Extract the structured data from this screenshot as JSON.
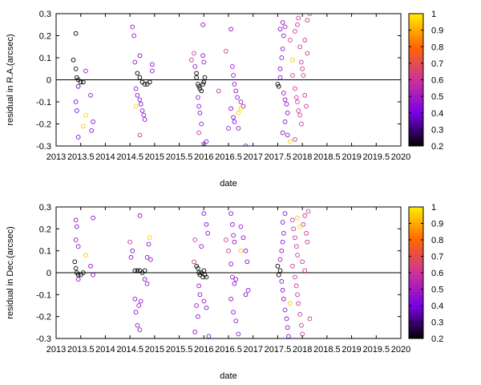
{
  "chart_data": [
    {
      "type": "scatter",
      "xlabel": "date",
      "ylabel": "residual in R.A.(arcsec)",
      "xlim": [
        2013,
        2020
      ],
      "ylim": [
        -0.3,
        0.3
      ],
      "xtick_labels": [
        "2013",
        "2013.5",
        "2014",
        "2014.5",
        "2015",
        "2015.5",
        "2016",
        "2016.5",
        "2017",
        "2017.5",
        "2018",
        "2018.5",
        "2019",
        "2019.5",
        "2020"
      ],
      "ytick_labels": [
        "0.3",
        "0.2",
        "0.1",
        "0",
        "-0.1",
        "-0.2",
        "-0.3"
      ],
      "colorbar": {
        "range": [
          0.2,
          1
        ],
        "tick_labels": [
          "1",
          "0.9",
          "0.8",
          "0.7",
          "0.6",
          "0.5",
          "0.4",
          "0.3",
          "0.2"
        ],
        "palette": [
          "#000000",
          "#7a00e6",
          "#cc3399",
          "#ff6600",
          "#ffee00"
        ]
      },
      "zero_line": true,
      "marker": "open-circle",
      "points": [
        [
          2013.4,
          0.21,
          0.2
        ],
        [
          2013.35,
          0.09,
          0.2
        ],
        [
          2013.4,
          0.05,
          0.25
        ],
        [
          2013.42,
          0.01,
          0.2
        ],
        [
          2013.45,
          0.0,
          0.2
        ],
        [
          2013.5,
          -0.01,
          0.2
        ],
        [
          2013.55,
          -0.01,
          0.2
        ],
        [
          2013.45,
          -0.03,
          0.35
        ],
        [
          2013.4,
          -0.1,
          0.4
        ],
        [
          2013.42,
          -0.14,
          0.4
        ],
        [
          2013.45,
          -0.26,
          0.4
        ],
        [
          2013.6,
          -0.16,
          0.95
        ],
        [
          2013.55,
          -0.21,
          0.95
        ],
        [
          2013.7,
          -0.07,
          0.45
        ],
        [
          2013.75,
          -0.19,
          0.45
        ],
        [
          2013.72,
          -0.23,
          0.45
        ],
        [
          2013.6,
          0.04,
          0.45
        ],
        [
          2014.55,
          0.24,
          0.45
        ],
        [
          2014.58,
          0.2,
          0.45
        ],
        [
          2014.7,
          0.11,
          0.45
        ],
        [
          2014.6,
          0.08,
          0.45
        ],
        [
          2014.65,
          0.03,
          0.2
        ],
        [
          2014.7,
          0.01,
          0.2
        ],
        [
          2014.75,
          -0.01,
          0.2
        ],
        [
          2014.8,
          -0.02,
          0.2
        ],
        [
          2014.85,
          -0.02,
          0.2
        ],
        [
          2014.9,
          -0.01,
          0.2
        ],
        [
          2014.62,
          -0.04,
          0.45
        ],
        [
          2014.65,
          -0.07,
          0.45
        ],
        [
          2014.7,
          -0.09,
          0.45
        ],
        [
          2014.72,
          -0.11,
          0.45
        ],
        [
          2014.75,
          -0.14,
          0.45
        ],
        [
          2014.78,
          -0.16,
          0.45
        ],
        [
          2014.8,
          -0.18,
          0.45
        ],
        [
          2014.62,
          -0.12,
          0.95
        ],
        [
          2014.7,
          -0.25,
          0.6
        ],
        [
          2014.95,
          0.07,
          0.45
        ],
        [
          2014.95,
          0.04,
          0.45
        ],
        [
          2015.75,
          0.09,
          0.6
        ],
        [
          2015.8,
          0.12,
          0.6
        ],
        [
          2015.82,
          0.06,
          0.45
        ],
        [
          2015.85,
          0.03,
          0.2
        ],
        [
          2015.85,
          0.01,
          0.2
        ],
        [
          2015.88,
          -0.02,
          0.2
        ],
        [
          2015.9,
          -0.03,
          0.2
        ],
        [
          2015.92,
          -0.04,
          0.2
        ],
        [
          2015.95,
          -0.05,
          0.2
        ],
        [
          2015.98,
          -0.02,
          0.2
        ],
        [
          2016.0,
          -0.01,
          0.2
        ],
        [
          2016.02,
          0.01,
          0.2
        ],
        [
          2015.88,
          -0.08,
          0.45
        ],
        [
          2015.9,
          -0.12,
          0.45
        ],
        [
          2015.92,
          -0.15,
          0.45
        ],
        [
          2015.95,
          -0.2,
          0.45
        ],
        [
          2015.9,
          -0.24,
          0.6
        ],
        [
          2015.98,
          0.11,
          0.45
        ],
        [
          2016.0,
          0.08,
          0.45
        ],
        [
          2015.98,
          0.25,
          0.45
        ],
        [
          2016.0,
          -0.29,
          0.45
        ],
        [
          2016.05,
          -0.28,
          0.45
        ],
        [
          2016.3,
          -0.05,
          0.6
        ],
        [
          2016.45,
          0.13,
          0.6
        ],
        [
          2016.55,
          0.23,
          0.45
        ],
        [
          2016.58,
          0.06,
          0.45
        ],
        [
          2016.6,
          0.02,
          0.45
        ],
        [
          2016.62,
          -0.02,
          0.45
        ],
        [
          2016.65,
          -0.05,
          0.45
        ],
        [
          2016.68,
          -0.08,
          0.45
        ],
        [
          2016.55,
          -0.13,
          0.45
        ],
        [
          2016.6,
          -0.17,
          0.45
        ],
        [
          2016.62,
          -0.19,
          0.45
        ],
        [
          2016.7,
          -0.22,
          0.45
        ],
        [
          2016.5,
          -0.22,
          0.45
        ],
        [
          2016.75,
          -0.1,
          0.45
        ],
        [
          2016.8,
          -0.12,
          0.45
        ],
        [
          2016.85,
          -0.3,
          0.45
        ],
        [
          2016.7,
          -0.15,
          0.95
        ],
        [
          2016.75,
          -0.13,
          0.95
        ],
        [
          2017.5,
          -0.02,
          0.2
        ],
        [
          2017.52,
          -0.03,
          0.2
        ],
        [
          2017.55,
          0.01,
          0.45
        ],
        [
          2017.55,
          0.05,
          0.45
        ],
        [
          2017.58,
          0.1,
          0.45
        ],
        [
          2017.6,
          0.14,
          0.45
        ],
        [
          2017.62,
          0.2,
          0.45
        ],
        [
          2017.65,
          0.24,
          0.45
        ],
        [
          2017.6,
          0.26,
          0.45
        ],
        [
          2017.55,
          0.23,
          0.45
        ],
        [
          2017.62,
          -0.06,
          0.45
        ],
        [
          2017.65,
          -0.09,
          0.45
        ],
        [
          2017.68,
          -0.11,
          0.45
        ],
        [
          2017.7,
          -0.15,
          0.45
        ],
        [
          2017.65,
          -0.19,
          0.45
        ],
        [
          2017.6,
          -0.24,
          0.45
        ],
        [
          2017.7,
          -0.25,
          0.45
        ],
        [
          2017.75,
          -0.28,
          0.95
        ],
        [
          2017.8,
          0.09,
          0.95
        ],
        [
          2017.75,
          0.18,
          0.6
        ],
        [
          2017.85,
          0.22,
          0.6
        ],
        [
          2017.9,
          0.25,
          0.6
        ],
        [
          2017.92,
          0.28,
          0.6
        ],
        [
          2017.8,
          0.02,
          0.6
        ],
        [
          2017.85,
          -0.04,
          0.6
        ],
        [
          2017.88,
          -0.08,
          0.6
        ],
        [
          2017.9,
          -0.1,
          0.6
        ],
        [
          2017.92,
          -0.14,
          0.6
        ],
        [
          2017.95,
          -0.16,
          0.6
        ],
        [
          2017.98,
          -0.2,
          0.6
        ],
        [
          2017.85,
          -0.27,
          0.6
        ],
        [
          2018.0,
          0.05,
          0.6
        ],
        [
          2018.02,
          0.02,
          0.6
        ],
        [
          2018.05,
          -0.07,
          0.6
        ],
        [
          2018.08,
          -0.12,
          0.6
        ],
        [
          2018.1,
          0.12,
          0.6
        ],
        [
          2018.05,
          0.18,
          0.6
        ],
        [
          2018.1,
          0.27,
          0.6
        ],
        [
          2018.15,
          0.3,
          0.6
        ],
        [
          2017.95,
          0.15,
          0.6
        ],
        [
          2017.98,
          0.08,
          0.6
        ]
      ]
    },
    {
      "type": "scatter",
      "xlabel": "date",
      "ylabel": "residual in Dec.(arcsec)",
      "xlim": [
        2013,
        2020
      ],
      "ylim": [
        -0.3,
        0.3
      ],
      "xtick_labels": [
        "2013",
        "2013.5",
        "2014",
        "2014.5",
        "2015",
        "2015.5",
        "2016",
        "2016.5",
        "2017",
        "2017.5",
        "2018",
        "2018.5",
        "2019",
        "2019.5",
        "2020"
      ],
      "ytick_labels": [
        "0.3",
        "0.2",
        "0.1",
        "0",
        "-0.1",
        "-0.2",
        "-0.3"
      ],
      "colorbar": {
        "range": [
          0.2,
          1
        ],
        "tick_labels": [
          "1",
          "0.9",
          "0.8",
          "0.7",
          "0.6",
          "0.5",
          "0.4",
          "0.3",
          "0.2"
        ],
        "palette": [
          "#000000",
          "#7a00e6",
          "#cc3399",
          "#ff6600",
          "#ffee00"
        ]
      },
      "zero_line": true,
      "marker": "open-circle",
      "points": [
        [
          2013.4,
          0.24,
          0.45
        ],
        [
          2013.42,
          0.21,
          0.45
        ],
        [
          2013.4,
          0.15,
          0.45
        ],
        [
          2013.45,
          0.12,
          0.45
        ],
        [
          2013.38,
          0.05,
          0.2
        ],
        [
          2013.4,
          0.02,
          0.2
        ],
        [
          2013.42,
          0.0,
          0.2
        ],
        [
          2013.45,
          -0.01,
          0.2
        ],
        [
          2013.5,
          -0.01,
          0.2
        ],
        [
          2013.55,
          0.0,
          0.2
        ],
        [
          2013.45,
          -0.03,
          0.45
        ],
        [
          2013.6,
          0.08,
          0.95
        ],
        [
          2013.7,
          0.03,
          0.45
        ],
        [
          2013.75,
          -0.01,
          0.45
        ],
        [
          2013.75,
          0.25,
          0.45
        ],
        [
          2014.5,
          0.14,
          0.6
        ],
        [
          2014.55,
          0.1,
          0.45
        ],
        [
          2014.52,
          0.07,
          0.45
        ],
        [
          2014.6,
          0.01,
          0.2
        ],
        [
          2014.65,
          0.01,
          0.2
        ],
        [
          2014.7,
          0.01,
          0.2
        ],
        [
          2014.75,
          0.0,
          0.2
        ],
        [
          2014.8,
          0.01,
          0.2
        ],
        [
          2014.6,
          -0.12,
          0.45
        ],
        [
          2014.62,
          -0.18,
          0.45
        ],
        [
          2014.65,
          -0.24,
          0.45
        ],
        [
          2014.7,
          -0.26,
          0.45
        ],
        [
          2014.68,
          -0.15,
          0.45
        ],
        [
          2014.72,
          -0.13,
          0.45
        ],
        [
          2014.7,
          0.26,
          0.45
        ],
        [
          2014.85,
          0.07,
          0.45
        ],
        [
          2014.88,
          0.13,
          0.45
        ],
        [
          2014.9,
          0.16,
          0.95
        ],
        [
          2014.92,
          0.06,
          0.45
        ],
        [
          2014.8,
          -0.03,
          0.45
        ],
        [
          2014.85,
          -0.05,
          0.45
        ],
        [
          2015.8,
          0.05,
          0.6
        ],
        [
          2015.82,
          0.15,
          0.6
        ],
        [
          2015.85,
          0.03,
          0.2
        ],
        [
          2015.88,
          0.02,
          0.2
        ],
        [
          2015.9,
          0.0,
          0.2
        ],
        [
          2015.92,
          -0.01,
          0.2
        ],
        [
          2015.95,
          0.0,
          0.2
        ],
        [
          2015.98,
          -0.02,
          0.2
        ],
        [
          2016.0,
          0.01,
          0.2
        ],
        [
          2016.02,
          -0.01,
          0.2
        ],
        [
          2016.05,
          -0.02,
          0.2
        ],
        [
          2015.9,
          -0.06,
          0.45
        ],
        [
          2015.92,
          -0.1,
          0.45
        ],
        [
          2015.85,
          -0.15,
          0.45
        ],
        [
          2015.88,
          -0.2,
          0.45
        ],
        [
          2015.82,
          -0.27,
          0.45
        ],
        [
          2016.0,
          -0.13,
          0.45
        ],
        [
          2016.05,
          -0.16,
          0.45
        ],
        [
          2016.0,
          0.27,
          0.45
        ],
        [
          2016.05,
          0.22,
          0.45
        ],
        [
          2016.08,
          0.18,
          0.45
        ],
        [
          2015.95,
          0.12,
          0.45
        ],
        [
          2016.1,
          -0.29,
          0.45
        ],
        [
          2016.45,
          0.15,
          0.6
        ],
        [
          2016.5,
          0.1,
          0.6
        ],
        [
          2016.55,
          0.27,
          0.45
        ],
        [
          2016.58,
          0.22,
          0.45
        ],
        [
          2016.6,
          0.17,
          0.45
        ],
        [
          2016.62,
          0.14,
          0.45
        ],
        [
          2016.55,
          0.04,
          0.45
        ],
        [
          2016.58,
          -0.02,
          0.45
        ],
        [
          2016.62,
          -0.05,
          0.45
        ],
        [
          2016.65,
          -0.03,
          0.45
        ],
        [
          2016.55,
          -0.12,
          0.45
        ],
        [
          2016.6,
          -0.18,
          0.45
        ],
        [
          2016.65,
          -0.22,
          0.45
        ],
        [
          2016.7,
          -0.28,
          0.45
        ],
        [
          2016.75,
          0.21,
          0.45
        ],
        [
          2016.8,
          0.16,
          0.45
        ],
        [
          2016.85,
          0.1,
          0.45
        ],
        [
          2016.88,
          0.05,
          0.45
        ],
        [
          2016.75,
          0.1,
          0.95
        ],
        [
          2016.85,
          -0.1,
          0.45
        ],
        [
          2016.9,
          -0.08,
          0.45
        ],
        [
          2017.5,
          0.03,
          0.2
        ],
        [
          2017.52,
          -0.01,
          0.2
        ],
        [
          2017.55,
          0.01,
          0.2
        ],
        [
          2017.55,
          0.06,
          0.45
        ],
        [
          2017.58,
          0.1,
          0.45
        ],
        [
          2017.6,
          0.14,
          0.45
        ],
        [
          2017.62,
          0.18,
          0.45
        ],
        [
          2017.6,
          0.23,
          0.45
        ],
        [
          2017.65,
          0.27,
          0.45
        ],
        [
          2017.58,
          -0.04,
          0.45
        ],
        [
          2017.6,
          -0.08,
          0.45
        ],
        [
          2017.62,
          -0.12,
          0.45
        ],
        [
          2017.65,
          -0.17,
          0.45
        ],
        [
          2017.68,
          -0.21,
          0.45
        ],
        [
          2017.7,
          -0.25,
          0.45
        ],
        [
          2017.72,
          -0.29,
          0.45
        ],
        [
          2017.75,
          -0.14,
          0.95
        ],
        [
          2017.8,
          0.24,
          0.6
        ],
        [
          2017.82,
          0.2,
          0.6
        ],
        [
          2017.85,
          0.16,
          0.6
        ],
        [
          2017.88,
          0.12,
          0.6
        ],
        [
          2017.9,
          0.08,
          0.6
        ],
        [
          2017.8,
          0.03,
          0.6
        ],
        [
          2017.85,
          -0.02,
          0.6
        ],
        [
          2017.88,
          -0.06,
          0.6
        ],
        [
          2017.9,
          -0.1,
          0.6
        ],
        [
          2017.92,
          -0.14,
          0.6
        ],
        [
          2017.95,
          -0.19,
          0.6
        ],
        [
          2017.98,
          -0.24,
          0.6
        ],
        [
          2018.0,
          -0.28,
          0.6
        ],
        [
          2018.02,
          0.22,
          0.6
        ],
        [
          2018.05,
          0.26,
          0.6
        ],
        [
          2018.08,
          0.18,
          0.6
        ],
        [
          2018.1,
          0.14,
          0.6
        ],
        [
          2018.12,
          0.28,
          0.6
        ],
        [
          2018.15,
          -0.21,
          0.6
        ],
        [
          2017.9,
          0.25,
          0.95
        ],
        [
          2017.95,
          0.21,
          0.95
        ],
        [
          2018.0,
          0.05,
          0.6
        ],
        [
          2018.05,
          0.01,
          0.6
        ]
      ]
    }
  ]
}
